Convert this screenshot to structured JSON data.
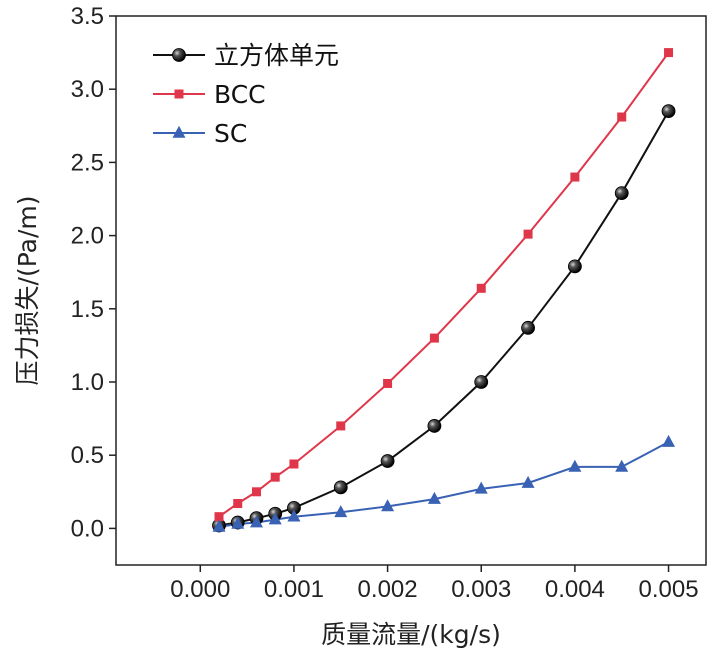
{
  "chart_data": {
    "type": "line",
    "xlabel": "质量流量/(kg/s)",
    "ylabel": "压力损失/(Pa/m)",
    "xlim": [
      -0.0009,
      0.0054
    ],
    "ylim": [
      -0.25,
      3.5
    ],
    "xticks": [
      0.0,
      0.001,
      0.002,
      0.003,
      0.004,
      0.005
    ],
    "xtick_labels": [
      "0.000",
      "0.001",
      "0.002",
      "0.003",
      "0.004",
      "0.005"
    ],
    "yticks": [
      0.0,
      0.5,
      1.0,
      1.5,
      2.0,
      2.5,
      3.0,
      3.5
    ],
    "ytick_labels": [
      "0.0",
      "0.5",
      "1.0",
      "1.5",
      "2.0",
      "2.5",
      "3.0",
      "3.5"
    ],
    "legend_position": "top-left",
    "grid": false,
    "series": [
      {
        "name": "立方体单元",
        "color": "#111111",
        "marker": "circle",
        "x": [
          0.0002,
          0.0004,
          0.0006,
          0.0008,
          0.001,
          0.0015,
          0.002,
          0.0025,
          0.003,
          0.0035,
          0.004,
          0.0045,
          0.005
        ],
        "y": [
          0.02,
          0.04,
          0.07,
          0.1,
          0.14,
          0.28,
          0.46,
          0.7,
          1.0,
          1.37,
          1.79,
          2.29,
          2.85
        ]
      },
      {
        "name": "BCC",
        "color": "#e0364a",
        "marker": "square",
        "x": [
          0.0002,
          0.0004,
          0.0006,
          0.0008,
          0.001,
          0.0015,
          0.002,
          0.0025,
          0.003,
          0.0035,
          0.004,
          0.0045,
          0.005
        ],
        "y": [
          0.08,
          0.17,
          0.25,
          0.35,
          0.44,
          0.7,
          0.99,
          1.3,
          1.64,
          2.01,
          2.4,
          2.81,
          3.25
        ]
      },
      {
        "name": "SC",
        "color": "#3a62b4",
        "marker": "triangle",
        "x": [
          0.0002,
          0.0004,
          0.0006,
          0.0008,
          0.001,
          0.0015,
          0.002,
          0.0025,
          0.003,
          0.0035,
          0.004,
          0.0045,
          0.005
        ],
        "y": [
          0.01,
          0.03,
          0.04,
          0.06,
          0.08,
          0.11,
          0.15,
          0.2,
          0.27,
          0.31,
          0.42,
          0.42,
          0.59
        ]
      }
    ]
  }
}
